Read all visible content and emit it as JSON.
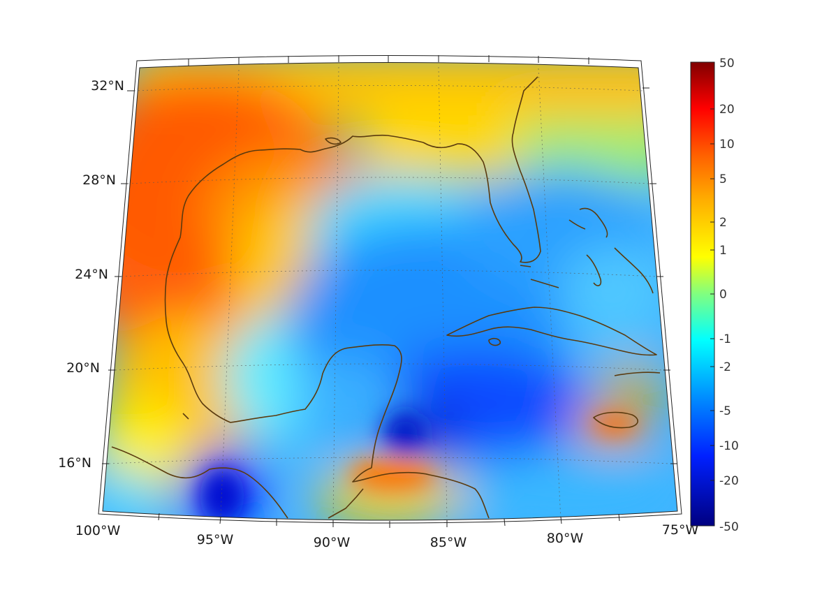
{
  "map": {
    "longitude_labels": [
      "100°W",
      "95°W",
      "90°W",
      "85°W",
      "80°W",
      "75°W"
    ],
    "latitude_labels": [
      "32°N",
      "28°N",
      "24°N",
      "20°N",
      "16°N"
    ],
    "coastline_color": "#5a3a0e",
    "field_palette": "jet",
    "field_regions": {
      "northwest_gulf_and_texas": "warm (5 to 10)",
      "central_gulf": "cool (-1 to -5)",
      "caribbean_south_of_cuba": "cold (-5 to -20)",
      "gulf_of_tehuantepec": "cold (-10 to -20)",
      "honduras_coast_and_jamaica": "warm (2 to 5)"
    }
  },
  "colorbar": {
    "tick_labels": [
      "50",
      "20",
      "10",
      "5",
      "2",
      "1",
      "0",
      "-1",
      "-2",
      "-5",
      "-10",
      "-20",
      "-50"
    ],
    "min": -50,
    "max": 50,
    "colors": [
      "#800000",
      "#ff0000",
      "#ff8000",
      "#ffff00",
      "#80ff80",
      "#00ffff",
      "#0080ff",
      "#0000ff",
      "#000080"
    ]
  }
}
